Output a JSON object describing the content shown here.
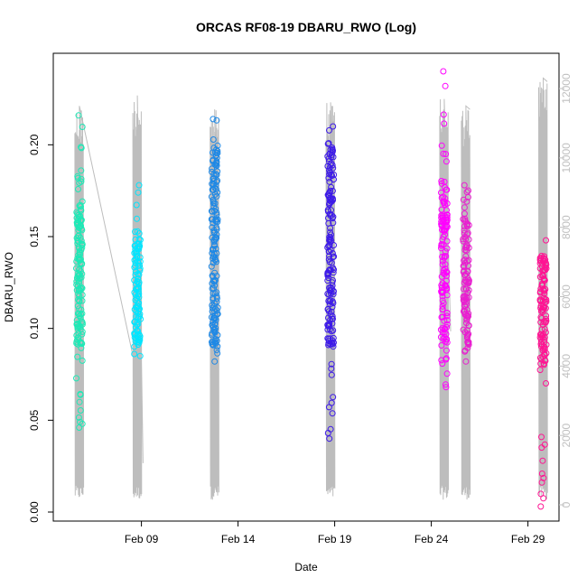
{
  "chart_data": {
    "type": "scatter",
    "title": "ORCAS RF08-19 DBARU_RWO (Log)",
    "xlabel": "Date",
    "ylabel": "DBARU_RWO",
    "x_axis": {
      "type": "date",
      "range": [
        "2016-02-05",
        "2016-03-01"
      ],
      "ticks": [
        {
          "date": "2016-02-09",
          "label": "Feb 09"
        },
        {
          "date": "2016-02-14",
          "label": "Feb 14"
        },
        {
          "date": "2016-02-19",
          "label": "Feb 19"
        },
        {
          "date": "2016-02-24",
          "label": "Feb 24"
        },
        {
          "date": "2016-02-29",
          "label": "Feb 29"
        }
      ]
    },
    "y_axis": {
      "range": [
        0,
        0.24
      ],
      "ticks": [
        {
          "value": 0.0,
          "label": "0.00"
        },
        {
          "value": 0.05,
          "label": "0.05"
        },
        {
          "value": 0.1,
          "label": "0.10"
        },
        {
          "value": 0.15,
          "label": "0.15"
        },
        {
          "value": 0.2,
          "label": "0.20"
        }
      ]
    },
    "y2_axis": {
      "range": [
        0,
        12600
      ],
      "color": "#c0c0c0",
      "ticks": [
        {
          "value": 0,
          "label": "0"
        },
        {
          "value": 2000,
          "label": "2000"
        },
        {
          "value": 4000,
          "label": "4000"
        },
        {
          "value": 6000,
          "label": "6000"
        },
        {
          "value": 8000,
          "label": "8000"
        },
        {
          "value": 10000,
          "label": "10000"
        },
        {
          "value": 12000,
          "label": "12000"
        }
      ]
    },
    "grid": false,
    "legend": "none",
    "altitude_color": "#bdbdbd",
    "flights": [
      {
        "date": "2016-02-05T19:00",
        "color": "#1de9b6",
        "ymin": 0.046,
        "ymax": 0.216,
        "core": [
          0.09,
          0.17
        ],
        "n": 150
      },
      {
        "date": "2016-02-08T19:00",
        "color": "#00e5ff",
        "ymin": 0.085,
        "ymax": 0.178,
        "core": [
          0.09,
          0.15
        ],
        "n": 110
      },
      {
        "date": "2016-02-12T19:00",
        "color": "#1e88e5",
        "ymin": 0.082,
        "ymax": 0.214,
        "core": [
          0.09,
          0.2
        ],
        "n": 160
      },
      {
        "date": "2016-02-18T19:00",
        "color": "#3d1ae8",
        "ymin": 0.04,
        "ymax": 0.21,
        "core": [
          0.09,
          0.2
        ],
        "n": 170
      },
      {
        "date": "2016-02-24T16:00",
        "color": "#ff00ff",
        "ymin": 0.068,
        "ymax": 0.24,
        "core": [
          0.09,
          0.18
        ],
        "n": 130
      },
      {
        "date": "2016-02-25T19:00",
        "color": "#e91ed0",
        "ymin": 0.082,
        "ymax": 0.178,
        "core": [
          0.09,
          0.16
        ],
        "n": 110
      },
      {
        "date": "2016-02-29T19:00",
        "color": "#ff1493",
        "ymin": 0.003,
        "ymax": 0.148,
        "core": [
          0.08,
          0.14
        ],
        "n": 120
      }
    ],
    "altitude_segments": [
      {
        "start": "2016-02-05T16:00",
        "end": "2016-02-09T00:30",
        "alt_start": 3800,
        "alt_end": 3100,
        "alt_max": 11500
      },
      {
        "start": "2016-02-08T16:00",
        "end": "2016-02-09T02:00",
        "alt_start": 1200,
        "alt_end": 1200,
        "alt_max": 11800
      },
      {
        "start": "2016-02-12T16:00",
        "end": "2016-02-13T00:00",
        "alt_start": 2300,
        "alt_end": 3900,
        "alt_max": 11400
      },
      {
        "start": "2016-02-18T16:00",
        "end": "2016-02-19T00:00",
        "alt_start": 2900,
        "alt_end": 3900,
        "alt_max": 11600
      },
      {
        "start": "2016-02-24T14:00",
        "end": "2016-02-25T00:00",
        "alt_start": 2900,
        "alt_end": 5000,
        "alt_max": 11700
      },
      {
        "start": "2016-02-25T16:00",
        "end": "2016-02-26T00:00",
        "alt_start": 2500,
        "alt_end": 11400,
        "alt_max": 11500
      },
      {
        "start": "2016-02-29T16:00",
        "end": "2016-03-01T00:00",
        "alt_start": 3100,
        "alt_end": 12200,
        "alt_max": 12300
      }
    ]
  }
}
